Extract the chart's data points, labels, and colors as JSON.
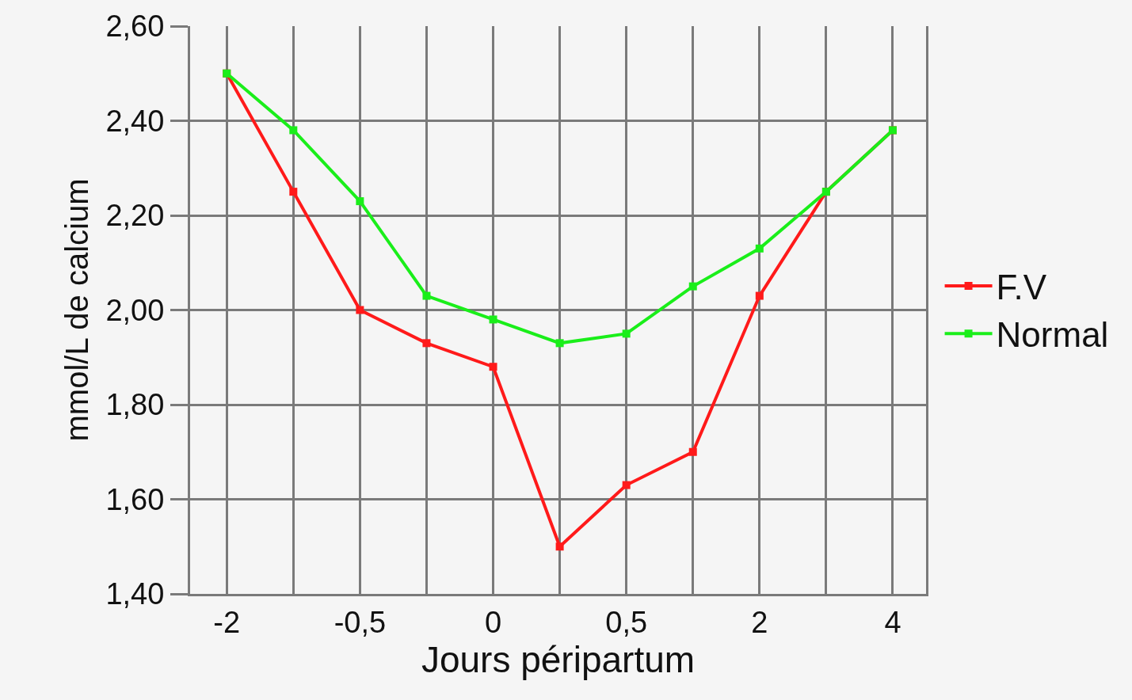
{
  "chart_data": {
    "type": "line",
    "xlabel": "Jours péripartum",
    "ylabel": "mmol/L de calcium",
    "categories": [
      "-2",
      null,
      "-0,5",
      null,
      "0",
      null,
      "0,5",
      null,
      "2",
      null,
      "4"
    ],
    "series": [
      {
        "name": "F.V",
        "color": "#ff1a1a",
        "values": [
          2.5,
          2.25,
          2.0,
          1.93,
          1.88,
          1.5,
          1.63,
          1.7,
          2.03,
          2.25,
          2.38
        ]
      },
      {
        "name": "Normal",
        "color": "#1aee1a",
        "values": [
          2.5,
          2.38,
          2.23,
          2.03,
          1.98,
          1.93,
          1.95,
          2.05,
          2.13,
          2.25,
          2.38
        ]
      }
    ],
    "ylim": [
      1.4,
      2.6
    ],
    "yticks": [
      {
        "value": 1.4,
        "label": "1,40"
      },
      {
        "value": 1.6,
        "label": "1,60"
      },
      {
        "value": 1.8,
        "label": "1,80"
      },
      {
        "value": 2.0,
        "label": "2,00"
      },
      {
        "value": 2.2,
        "label": "2,20"
      },
      {
        "value": 2.4,
        "label": "2,40"
      },
      {
        "value": 2.6,
        "label": "2,60"
      }
    ],
    "grid": true,
    "legend": "right",
    "marker": "square",
    "line_style": "solid"
  }
}
